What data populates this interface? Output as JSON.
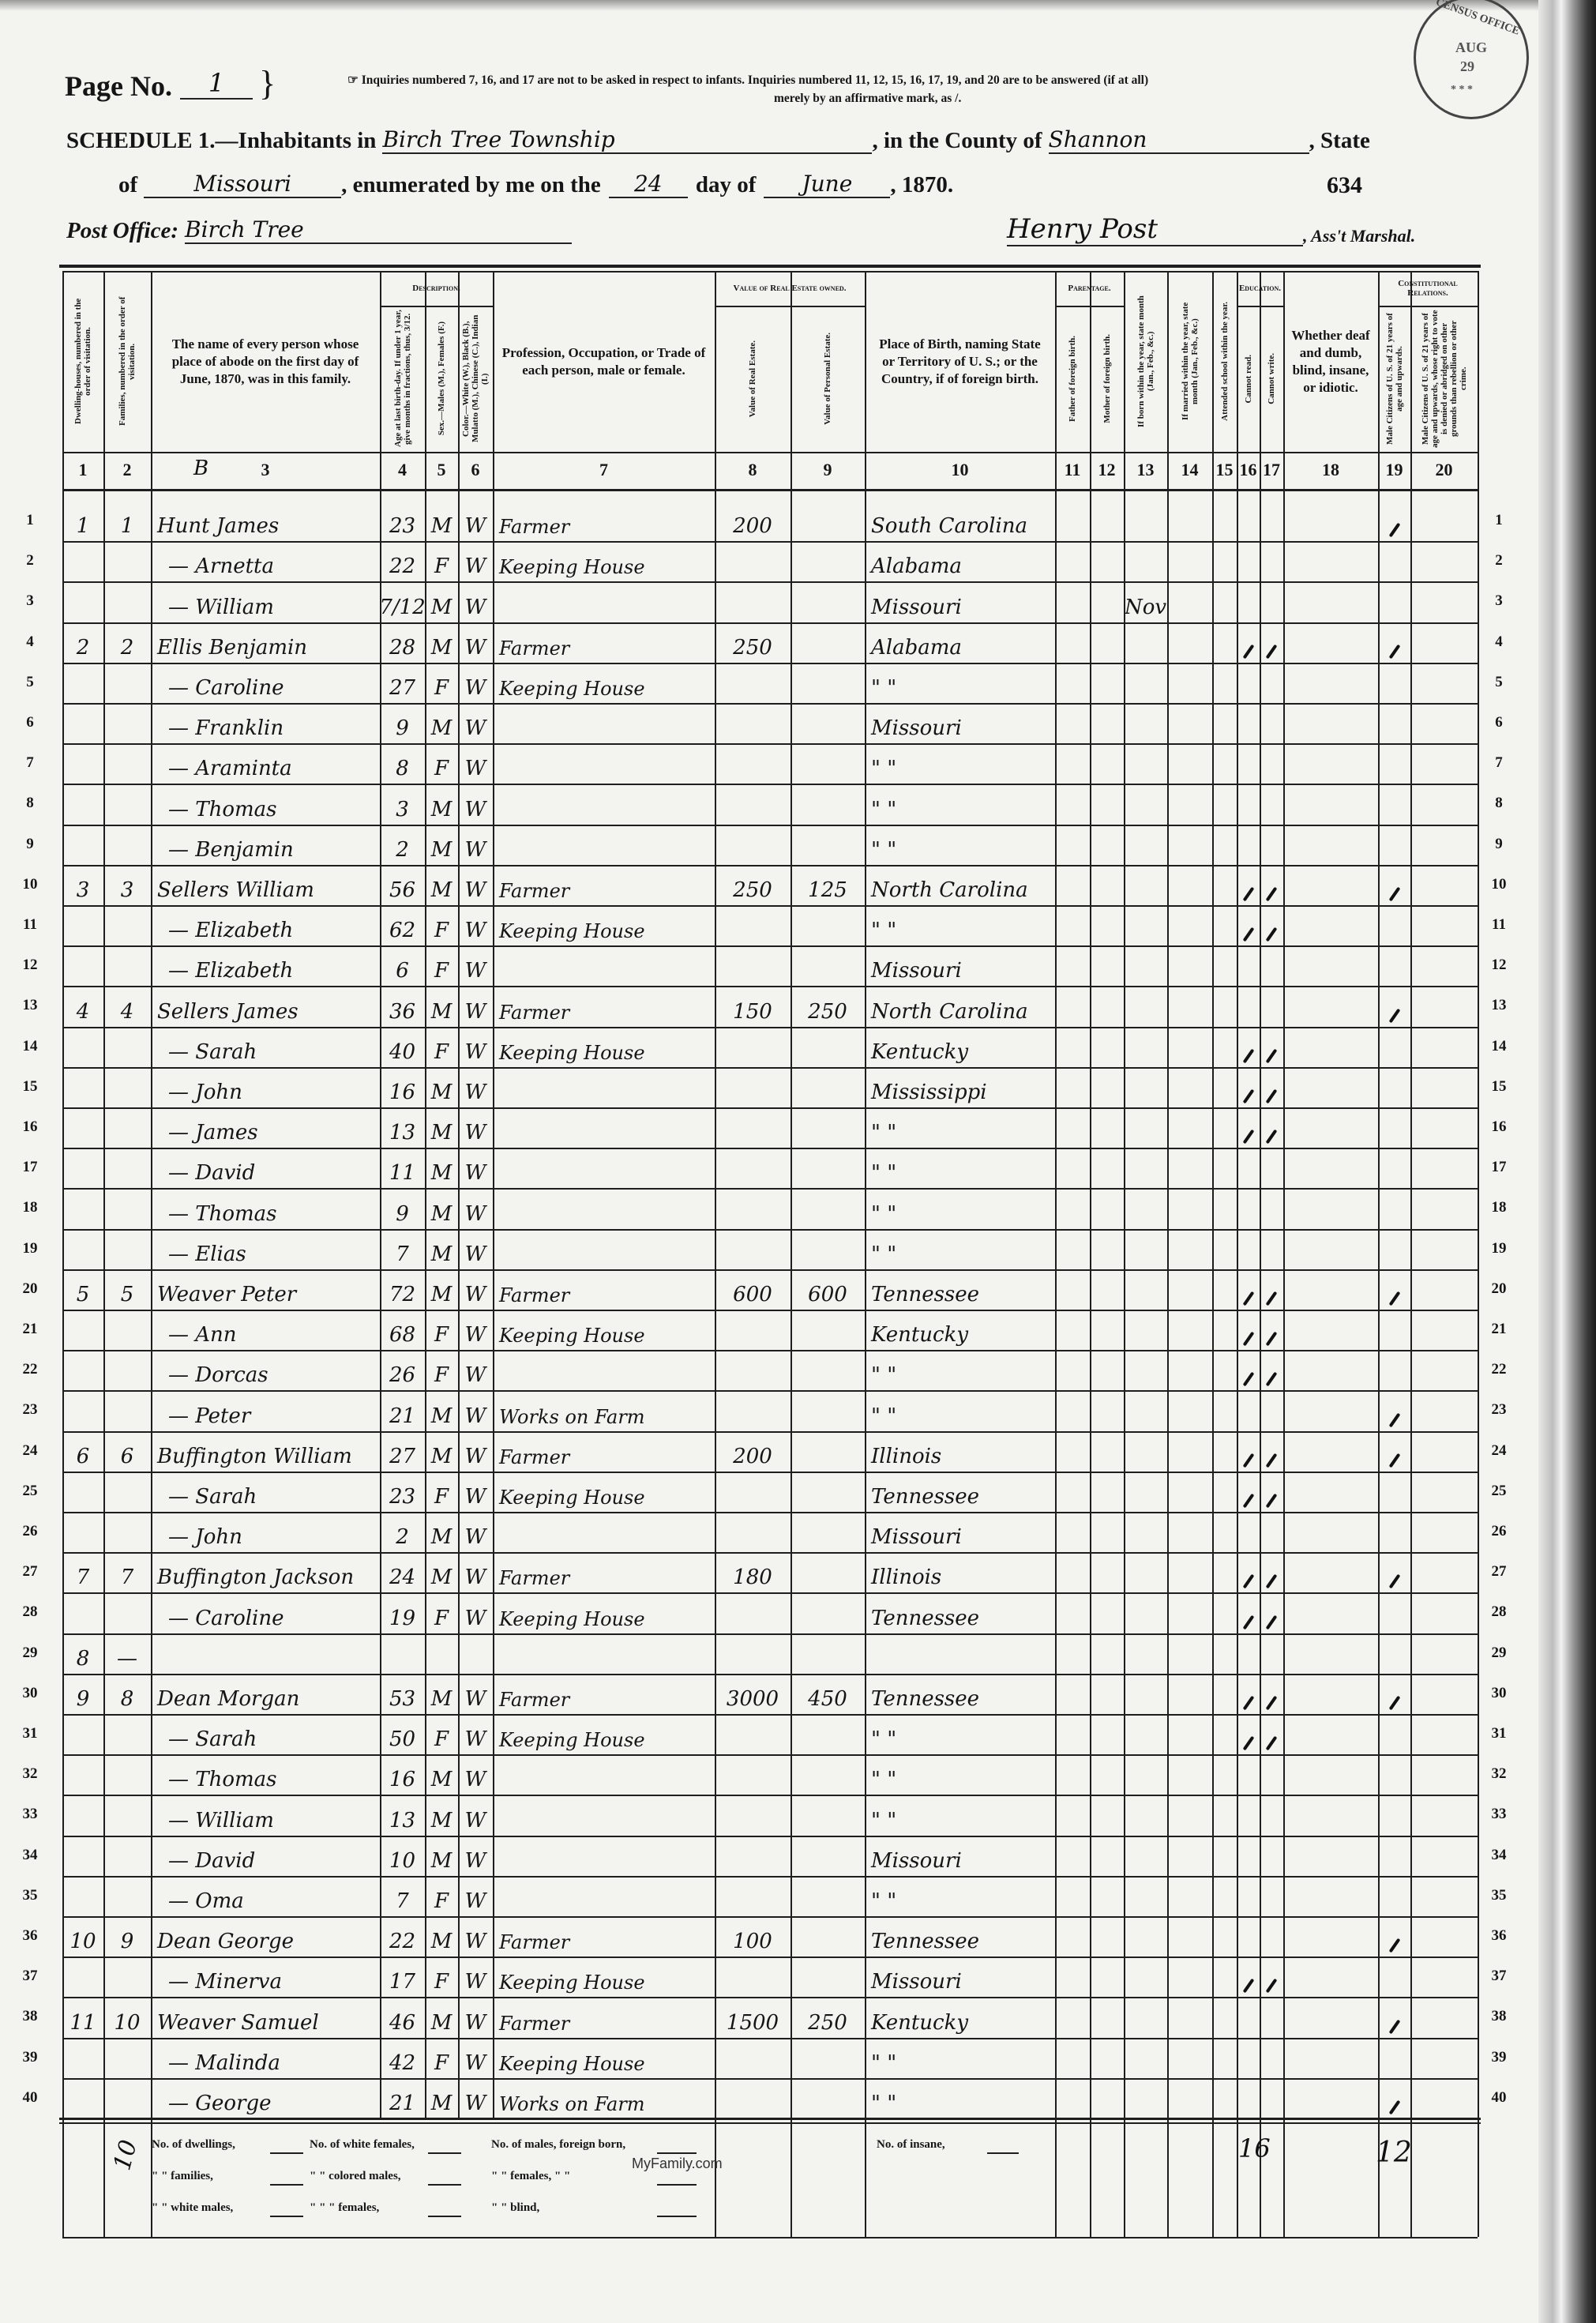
{
  "header": {
    "page_no_label": "Page No.",
    "page_no": "1",
    "instructions_line1": "☞ Inquiries numbered 7, 16, and 17 are not to be asked in respect to infants. Inquiries numbered 11, 12, 15, 16, 17, 19, and 20 are to be answered (if at all)",
    "instructions_line2": "merely by an affirmative mark, as /.",
    "stamp": {
      "text": "CENSUS OFFICE",
      "month": "AUG",
      "day": "29"
    },
    "schedule_label": "SCHEDULE 1.—Inhabitants in",
    "township": "Birch Tree Township",
    "county_label": ", in the County of",
    "county": "Shannon",
    "state_label": ", State",
    "of_label": "of",
    "state": "Missouri",
    "enumerated_label": ", enumerated by me on the",
    "day": "24",
    "day_of_label": "day of",
    "month": "June",
    "year_label": ", 1870.",
    "sheet_number": "634",
    "post_office_label": "Post Office:",
    "post_office": "Birch Tree",
    "marshal": "Henry Post",
    "marshal_label": ", Ass't Marshal."
  },
  "groups": {
    "description": "Description.",
    "value": "Value of Real Estate owned.",
    "parentage": "Parentage.",
    "education": "Education.",
    "constitutional": "Constitutional Relations."
  },
  "columns": [
    {
      "num": "1",
      "label": "Dwelling-houses, numbered in the order of visitation."
    },
    {
      "num": "2",
      "label": "Families, numbered in the order of visitation."
    },
    {
      "num": "3",
      "label": "The name of every person whose place of abode on the first day of June, 1870, was in this family."
    },
    {
      "num": "4",
      "label": "Age at last birth-day. If under 1 year, give months in fractions, thus, 3/12."
    },
    {
      "num": "5",
      "label": "Sex.—Males (M.), Females (F.)"
    },
    {
      "num": "6",
      "label": "Color.—White (W.), Black (B.), Mulatto (M.), Chinese (C.), Indian (I.)"
    },
    {
      "num": "7",
      "label": "Profession, Occupation, or Trade of each person, male or female."
    },
    {
      "num": "8",
      "label": "Value of Real Estate."
    },
    {
      "num": "9",
      "label": "Value of Personal Estate."
    },
    {
      "num": "10",
      "label": "Place of Birth, naming State or Territory of U. S.; or the Country, if of foreign birth."
    },
    {
      "num": "11",
      "label": "Father of foreign birth."
    },
    {
      "num": "12",
      "label": "Mother of foreign birth."
    },
    {
      "num": "13",
      "label": "If born within the year, state month (Jan., Feb., &c.)"
    },
    {
      "num": "14",
      "label": "If married within the year, state month (Jan., Feb., &c.)"
    },
    {
      "num": "15",
      "label": "Attended school within the year."
    },
    {
      "num": "16",
      "label": "Cannot read."
    },
    {
      "num": "17",
      "label": "Cannot write."
    },
    {
      "num": "18",
      "label": "Whether deaf and dumb, blind, insane, or idiotic."
    },
    {
      "num": "19",
      "label": "Male Citizens of U. S. of 21 years of age and upwards."
    },
    {
      "num": "20",
      "label": "Male Citizens of U. S. of 21 years of age and upwards, whose right to vote is denied or abridged on other grounds than rebellion or other crime."
    }
  ],
  "column3_annotation": "B",
  "rows": [
    {
      "n": "1",
      "dwelling": "1",
      "family": "1",
      "name": "Hunt James",
      "age": "23",
      "sex": "M",
      "color": "W",
      "occupation": "Farmer",
      "real_estate": "200",
      "personal_estate": "",
      "birthplace": "South Carolina",
      "born_month": "",
      "cannot_read": false,
      "cannot_write": false,
      "male_citizen": true
    },
    {
      "n": "2",
      "dwelling": "",
      "family": "",
      "name": "— Arnetta",
      "age": "22",
      "sex": "F",
      "color": "W",
      "occupation": "Keeping House",
      "real_estate": "",
      "personal_estate": "",
      "birthplace": "Alabama",
      "born_month": "",
      "cannot_read": false,
      "cannot_write": false,
      "male_citizen": false
    },
    {
      "n": "3",
      "dwelling": "",
      "family": "",
      "name": "— William",
      "age": "7/12",
      "sex": "M",
      "color": "W",
      "occupation": "",
      "real_estate": "",
      "personal_estate": "",
      "birthplace": "Missouri",
      "born_month": "Nov",
      "cannot_read": false,
      "cannot_write": false,
      "male_citizen": false
    },
    {
      "n": "4",
      "dwelling": "2",
      "family": "2",
      "name": "Ellis Benjamin",
      "age": "28",
      "sex": "M",
      "color": "W",
      "occupation": "Farmer",
      "real_estate": "250",
      "personal_estate": "",
      "birthplace": "Alabama",
      "born_month": "",
      "cannot_read": true,
      "cannot_write": true,
      "male_citizen": true
    },
    {
      "n": "5",
      "dwelling": "",
      "family": "",
      "name": "— Caroline",
      "age": "27",
      "sex": "F",
      "color": "W",
      "occupation": "Keeping House",
      "real_estate": "",
      "personal_estate": "",
      "birthplace": "\"      \"",
      "born_month": "",
      "cannot_read": false,
      "cannot_write": false,
      "male_citizen": false
    },
    {
      "n": "6",
      "dwelling": "",
      "family": "",
      "name": "— Franklin",
      "age": "9",
      "sex": "M",
      "color": "W",
      "occupation": "",
      "real_estate": "",
      "personal_estate": "",
      "birthplace": "Missouri",
      "born_month": "",
      "cannot_read": false,
      "cannot_write": false,
      "male_citizen": false
    },
    {
      "n": "7",
      "dwelling": "",
      "family": "",
      "name": "— Araminta",
      "age": "8",
      "sex": "F",
      "color": "W",
      "occupation": "",
      "real_estate": "",
      "personal_estate": "",
      "birthplace": "\"      \"",
      "born_month": "",
      "cannot_read": false,
      "cannot_write": false,
      "male_citizen": false
    },
    {
      "n": "8",
      "dwelling": "",
      "family": "",
      "name": "— Thomas",
      "age": "3",
      "sex": "M",
      "color": "W",
      "occupation": "",
      "real_estate": "",
      "personal_estate": "",
      "birthplace": "\"      \"",
      "born_month": "",
      "cannot_read": false,
      "cannot_write": false,
      "male_citizen": false
    },
    {
      "n": "9",
      "dwelling": "",
      "family": "",
      "name": "— Benjamin",
      "age": "2",
      "sex": "M",
      "color": "W",
      "occupation": "",
      "real_estate": "",
      "personal_estate": "",
      "birthplace": "\"      \"",
      "born_month": "",
      "cannot_read": false,
      "cannot_write": false,
      "male_citizen": false
    },
    {
      "n": "10",
      "dwelling": "3",
      "family": "3",
      "name": "Sellers William",
      "age": "56",
      "sex": "M",
      "color": "W",
      "occupation": "Farmer",
      "real_estate": "250",
      "personal_estate": "125",
      "birthplace": "North Carolina",
      "born_month": "",
      "cannot_read": true,
      "cannot_write": true,
      "male_citizen": true
    },
    {
      "n": "11",
      "dwelling": "",
      "family": "",
      "name": "— Elizabeth",
      "age": "62",
      "sex": "F",
      "color": "W",
      "occupation": "Keeping House",
      "real_estate": "",
      "personal_estate": "",
      "birthplace": "\"      \"",
      "born_month": "",
      "cannot_read": true,
      "cannot_write": true,
      "male_citizen": false
    },
    {
      "n": "12",
      "dwelling": "",
      "family": "",
      "name": "— Elizabeth",
      "age": "6",
      "sex": "F",
      "color": "W",
      "occupation": "",
      "real_estate": "",
      "personal_estate": "",
      "birthplace": "Missouri",
      "born_month": "",
      "cannot_read": false,
      "cannot_write": false,
      "male_citizen": false
    },
    {
      "n": "13",
      "dwelling": "4",
      "family": "4",
      "name": "Sellers James",
      "age": "36",
      "sex": "M",
      "color": "W",
      "occupation": "Farmer",
      "real_estate": "150",
      "personal_estate": "250",
      "birthplace": "North Carolina",
      "born_month": "",
      "cannot_read": false,
      "cannot_write": false,
      "male_citizen": true
    },
    {
      "n": "14",
      "dwelling": "",
      "family": "",
      "name": "— Sarah",
      "age": "40",
      "sex": "F",
      "color": "W",
      "occupation": "Keeping House",
      "real_estate": "",
      "personal_estate": "",
      "birthplace": "Kentucky",
      "born_month": "",
      "cannot_read": true,
      "cannot_write": true,
      "male_citizen": false
    },
    {
      "n": "15",
      "dwelling": "",
      "family": "",
      "name": "— John",
      "age": "16",
      "sex": "M",
      "color": "W",
      "occupation": "",
      "real_estate": "",
      "personal_estate": "",
      "birthplace": "Mississippi",
      "born_month": "",
      "cannot_read": true,
      "cannot_write": true,
      "male_citizen": false
    },
    {
      "n": "16",
      "dwelling": "",
      "family": "",
      "name": "— James",
      "age": "13",
      "sex": "M",
      "color": "W",
      "occupation": "",
      "real_estate": "",
      "personal_estate": "",
      "birthplace": "\"      \"",
      "born_month": "",
      "cannot_read": true,
      "cannot_write": true,
      "male_citizen": false
    },
    {
      "n": "17",
      "dwelling": "",
      "family": "",
      "name": "— David",
      "age": "11",
      "sex": "M",
      "color": "W",
      "occupation": "",
      "real_estate": "",
      "personal_estate": "",
      "birthplace": "\"      \"",
      "born_month": "",
      "cannot_read": false,
      "cannot_write": false,
      "male_citizen": false
    },
    {
      "n": "18",
      "dwelling": "",
      "family": "",
      "name": "— Thomas",
      "age": "9",
      "sex": "M",
      "color": "W",
      "occupation": "",
      "real_estate": "",
      "personal_estate": "",
      "birthplace": "\"      \"",
      "born_month": "",
      "cannot_read": false,
      "cannot_write": false,
      "male_citizen": false
    },
    {
      "n": "19",
      "dwelling": "",
      "family": "",
      "name": "— Elias",
      "age": "7",
      "sex": "M",
      "color": "W",
      "occupation": "",
      "real_estate": "",
      "personal_estate": "",
      "birthplace": "\"      \"",
      "born_month": "",
      "cannot_read": false,
      "cannot_write": false,
      "male_citizen": false
    },
    {
      "n": "20",
      "dwelling": "5",
      "family": "5",
      "name": "Weaver Peter",
      "age": "72",
      "sex": "M",
      "color": "W",
      "occupation": "Farmer",
      "real_estate": "600",
      "personal_estate": "600",
      "birthplace": "Tennessee",
      "born_month": "",
      "cannot_read": true,
      "cannot_write": true,
      "male_citizen": true
    },
    {
      "n": "21",
      "dwelling": "",
      "family": "",
      "name": "— Ann",
      "age": "68",
      "sex": "F",
      "color": "W",
      "occupation": "Keeping House",
      "real_estate": "",
      "personal_estate": "",
      "birthplace": "Kentucky",
      "born_month": "",
      "cannot_read": true,
      "cannot_write": true,
      "male_citizen": false
    },
    {
      "n": "22",
      "dwelling": "",
      "family": "",
      "name": "— Dorcas",
      "age": "26",
      "sex": "F",
      "color": "W",
      "occupation": "",
      "real_estate": "",
      "personal_estate": "",
      "birthplace": "\"      \"",
      "born_month": "",
      "cannot_read": true,
      "cannot_write": true,
      "male_citizen": false
    },
    {
      "n": "23",
      "dwelling": "",
      "family": "",
      "name": "— Peter",
      "age": "21",
      "sex": "M",
      "color": "W",
      "occupation": "Works on Farm",
      "real_estate": "",
      "personal_estate": "",
      "birthplace": "\"      \"",
      "born_month": "",
      "cannot_read": false,
      "cannot_write": false,
      "male_citizen": true
    },
    {
      "n": "24",
      "dwelling": "6",
      "family": "6",
      "name": "Buffington William",
      "age": "27",
      "sex": "M",
      "color": "W",
      "occupation": "Farmer",
      "real_estate": "200",
      "personal_estate": "",
      "birthplace": "Illinois",
      "born_month": "",
      "cannot_read": true,
      "cannot_write": true,
      "male_citizen": true
    },
    {
      "n": "25",
      "dwelling": "",
      "family": "",
      "name": "— Sarah",
      "age": "23",
      "sex": "F",
      "color": "W",
      "occupation": "Keeping House",
      "real_estate": "",
      "personal_estate": "",
      "birthplace": "Tennessee",
      "born_month": "",
      "cannot_read": true,
      "cannot_write": true,
      "male_citizen": false
    },
    {
      "n": "26",
      "dwelling": "",
      "family": "",
      "name": "— John",
      "age": "2",
      "sex": "M",
      "color": "W",
      "occupation": "",
      "real_estate": "",
      "personal_estate": "",
      "birthplace": "Missouri",
      "born_month": "",
      "cannot_read": false,
      "cannot_write": false,
      "male_citizen": false
    },
    {
      "n": "27",
      "dwelling": "7",
      "family": "7",
      "name": "Buffington Jackson",
      "age": "24",
      "sex": "M",
      "color": "W",
      "occupation": "Farmer",
      "real_estate": "180",
      "personal_estate": "",
      "birthplace": "Illinois",
      "born_month": "",
      "cannot_read": true,
      "cannot_write": true,
      "male_citizen": true
    },
    {
      "n": "28",
      "dwelling": "",
      "family": "",
      "name": "— Caroline",
      "age": "19",
      "sex": "F",
      "color": "W",
      "occupation": "Keeping House",
      "real_estate": "",
      "personal_estate": "",
      "birthplace": "Tennessee",
      "born_month": "",
      "cannot_read": true,
      "cannot_write": true,
      "male_citizen": false
    },
    {
      "n": "29",
      "dwelling": "8",
      "family": "—",
      "name": "",
      "age": "",
      "sex": "",
      "color": "",
      "occupation": "",
      "real_estate": "",
      "personal_estate": "",
      "birthplace": "",
      "born_month": "",
      "cannot_read": false,
      "cannot_write": false,
      "male_citizen": false
    },
    {
      "n": "30",
      "dwelling": "9",
      "family": "8",
      "name": "Dean Morgan",
      "age": "53",
      "sex": "M",
      "color": "W",
      "occupation": "Farmer",
      "real_estate": "3000",
      "personal_estate": "450",
      "birthplace": "Tennessee",
      "born_month": "",
      "cannot_read": true,
      "cannot_write": true,
      "male_citizen": true
    },
    {
      "n": "31",
      "dwelling": "",
      "family": "",
      "name": "— Sarah",
      "age": "50",
      "sex": "F",
      "color": "W",
      "occupation": "Keeping House",
      "real_estate": "",
      "personal_estate": "",
      "birthplace": "\"      \"",
      "born_month": "",
      "cannot_read": true,
      "cannot_write": true,
      "male_citizen": false
    },
    {
      "n": "32",
      "dwelling": "",
      "family": "",
      "name": "— Thomas",
      "age": "16",
      "sex": "M",
      "color": "W",
      "occupation": "",
      "real_estate": "",
      "personal_estate": "",
      "birthplace": "\"      \"",
      "born_month": "",
      "cannot_read": false,
      "cannot_write": false,
      "male_citizen": false
    },
    {
      "n": "33",
      "dwelling": "",
      "family": "",
      "name": "— William",
      "age": "13",
      "sex": "M",
      "color": "W",
      "occupation": "",
      "real_estate": "",
      "personal_estate": "",
      "birthplace": "\"      \"",
      "born_month": "",
      "cannot_read": false,
      "cannot_write": false,
      "male_citizen": false
    },
    {
      "n": "34",
      "dwelling": "",
      "family": "",
      "name": "— David",
      "age": "10",
      "sex": "M",
      "color": "W",
      "occupation": "",
      "real_estate": "",
      "personal_estate": "",
      "birthplace": "Missouri",
      "born_month": "",
      "cannot_read": false,
      "cannot_write": false,
      "male_citizen": false
    },
    {
      "n": "35",
      "dwelling": "",
      "family": "",
      "name": "— Oma",
      "age": "7",
      "sex": "F",
      "color": "W",
      "occupation": "",
      "real_estate": "",
      "personal_estate": "",
      "birthplace": "\"      \"",
      "born_month": "",
      "cannot_read": false,
      "cannot_write": false,
      "male_citizen": false
    },
    {
      "n": "36",
      "dwelling": "10",
      "family": "9",
      "name": "Dean George",
      "age": "22",
      "sex": "M",
      "color": "W",
      "occupation": "Farmer",
      "real_estate": "100",
      "personal_estate": "",
      "birthplace": "Tennessee",
      "born_month": "",
      "cannot_read": false,
      "cannot_write": false,
      "male_citizen": true
    },
    {
      "n": "37",
      "dwelling": "",
      "family": "",
      "name": "— Minerva",
      "age": "17",
      "sex": "F",
      "color": "W",
      "occupation": "Keeping House",
      "real_estate": "",
      "personal_estate": "",
      "birthplace": "Missouri",
      "born_month": "",
      "cannot_read": true,
      "cannot_write": true,
      "male_citizen": false
    },
    {
      "n": "38",
      "dwelling": "11",
      "family": "10",
      "name": "Weaver Samuel",
      "age": "46",
      "sex": "M",
      "color": "W",
      "occupation": "Farmer",
      "real_estate": "1500",
      "personal_estate": "250",
      "birthplace": "Kentucky",
      "born_month": "",
      "cannot_read": false,
      "cannot_write": false,
      "male_citizen": true
    },
    {
      "n": "39",
      "dwelling": "",
      "family": "",
      "name": "— Malinda",
      "age": "42",
      "sex": "F",
      "color": "W",
      "occupation": "Keeping House",
      "real_estate": "",
      "personal_estate": "",
      "birthplace": "\"      \"",
      "born_month": "",
      "cannot_read": false,
      "cannot_write": false,
      "male_citizen": false
    },
    {
      "n": "40",
      "dwelling": "",
      "family": "",
      "name": "— George",
      "age": "21",
      "sex": "M",
      "color": "W",
      "occupation": "Works on Farm",
      "real_estate": "",
      "personal_estate": "",
      "birthplace": "\"      \"",
      "born_month": "",
      "cannot_read": false,
      "cannot_write": false,
      "male_citizen": true
    }
  ],
  "footer": {
    "labels": [
      [
        "No. of dwellings,",
        "No. of white females,",
        "No. of males, foreign born,"
      ],
      [
        "\" \" families,",
        "\" \" colored males,",
        "\" \" females, \" \""
      ],
      [
        "\" \" white males,",
        "\" \" \" females,",
        "\" \" blind,"
      ]
    ],
    "insane_label": "No. of insane,",
    "family_total": "10",
    "cannot_read_write_total": "16",
    "male_citizen_total": "12",
    "watermark": "MyFamily.com"
  }
}
